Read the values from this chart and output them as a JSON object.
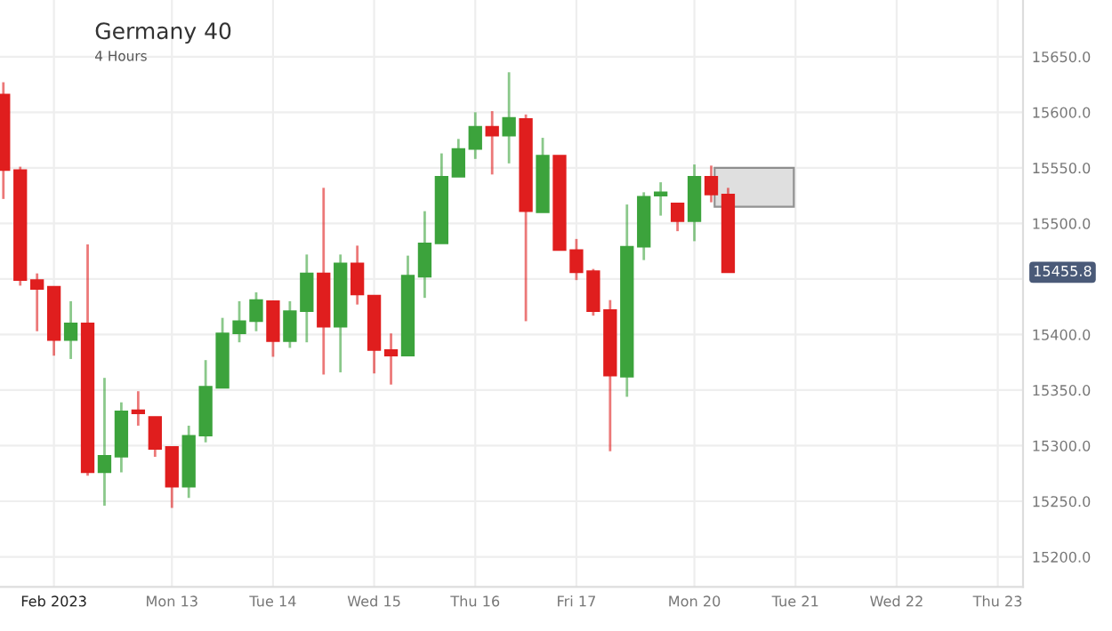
{
  "chart_data": {
    "type": "candlestick",
    "title": "Germany 40",
    "subtitle": "4 Hours",
    "categories": [
      null,
      null,
      null,
      "Feb 2023",
      null,
      null,
      null,
      null,
      null,
      null,
      "Mon 13",
      null,
      null,
      null,
      null,
      null,
      "Tue 14",
      null,
      null,
      null,
      null,
      null,
      "Wed 15",
      null,
      null,
      null,
      null,
      null,
      "Thu 16",
      null,
      null,
      null,
      null,
      null,
      "Fri 17",
      null,
      null,
      null,
      null,
      null,
      null,
      "Mon 20",
      null,
      null,
      null,
      null,
      null,
      "Tue 21",
      null,
      null,
      null,
      null,
      null,
      "Wed 22",
      null,
      null,
      null,
      null,
      null,
      "Thu 23",
      null
    ],
    "ohlc": [
      [
        15616,
        15627,
        15522,
        15548
      ],
      [
        15548,
        15551,
        15444,
        15449
      ],
      [
        15449,
        15455,
        15403,
        15441
      ],
      [
        15443,
        15443,
        15381,
        15395
      ],
      [
        15395,
        15430,
        15378,
        15410
      ],
      [
        15410,
        15481,
        15273,
        15276
      ],
      [
        15276,
        15361,
        15246,
        15291
      ],
      [
        15290,
        15339,
        15276,
        15331
      ],
      [
        15332,
        15349,
        15318,
        15329
      ],
      [
        15326,
        15326,
        15290,
        15297
      ],
      [
        15299,
        15299,
        15244,
        15263
      ],
      [
        15263,
        15318,
        15253,
        15309
      ],
      [
        15309,
        15377,
        15303,
        15353
      ],
      [
        15352,
        15415,
        15352,
        15401
      ],
      [
        15401,
        15430,
        15393,
        15412
      ],
      [
        15412,
        15438,
        15403,
        15431
      ],
      [
        15430,
        15430,
        15380,
        15394
      ],
      [
        15394,
        15430,
        15388,
        15421
      ],
      [
        15421,
        15472,
        15393,
        15455
      ],
      [
        15455,
        15532,
        15364,
        15407
      ],
      [
        15407,
        15472,
        15366,
        15464
      ],
      [
        15464,
        15480,
        15427,
        15436
      ],
      [
        15435,
        15435,
        15365,
        15386
      ],
      [
        15386,
        15401,
        15355,
        15381
      ],
      [
        15381,
        15471,
        15381,
        15453
      ],
      [
        15452,
        15511,
        15433,
        15482
      ],
      [
        15482,
        15563,
        15482,
        15542
      ],
      [
        15542,
        15576,
        15542,
        15567
      ],
      [
        15567,
        15600,
        15558,
        15587
      ],
      [
        15587,
        15601,
        15544,
        15579
      ],
      [
        15579,
        15636,
        15554,
        15595
      ],
      [
        15594,
        15598,
        15412,
        15511
      ],
      [
        15510,
        15577,
        15510,
        15561
      ],
      [
        15561,
        15561,
        15476,
        15476
      ],
      [
        15476,
        15486,
        15449,
        15456
      ],
      [
        15457,
        15459,
        15417,
        15421
      ],
      [
        15422,
        15431,
        15295,
        15363
      ],
      [
        15362,
        15517,
        15344,
        15479
      ],
      [
        15479,
        15528,
        15467,
        15524
      ],
      [
        15525,
        15537,
        15507,
        15528
      ],
      [
        15518,
        15518,
        15493,
        15502
      ],
      [
        15502,
        15553,
        15484,
        15542
      ],
      [
        15542,
        15552,
        15519,
        15526
      ],
      [
        15526,
        15532,
        15456,
        15456
      ],
      null,
      null,
      null,
      null,
      null,
      null,
      null,
      null,
      null,
      null,
      null,
      null,
      null,
      null,
      null,
      null,
      null
    ],
    "colors": [
      "#e01e1e",
      "#e01e1e",
      "#e01e1e",
      "#e01e1e",
      "#3ca33c",
      "#e01e1e",
      "#3ca33c",
      "#3ca33c",
      "#e01e1e",
      "#e01e1e",
      "#e01e1e",
      "#3ca33c",
      "#3ca33c",
      "#3ca33c",
      "#3ca33c",
      "#3ca33c",
      "#e01e1e",
      "#3ca33c",
      "#3ca33c",
      "#e01e1e",
      "#3ca33c",
      "#e01e1e",
      "#e01e1e",
      "#e01e1e",
      "#3ca33c",
      "#3ca33c",
      "#3ca33c",
      "#3ca33c",
      "#3ca33c",
      "#e01e1e",
      "#3ca33c",
      "#e01e1e",
      "#3ca33c",
      "#e01e1e",
      "#e01e1e",
      "#e01e1e",
      "#e01e1e",
      "#3ca33c",
      "#3ca33c",
      "#3ca33c",
      "#e01e1e",
      "#3ca33c",
      "#e01e1e",
      "#e01e1e",
      null,
      null,
      null,
      null,
      null,
      null,
      null,
      null,
      null,
      null,
      null,
      null,
      null,
      null,
      null,
      null,
      null
    ],
    "ylim": [
      15173,
      15701
    ],
    "yticks": [
      {
        "value": 15200,
        "label": "15200.0"
      },
      {
        "value": 15250,
        "label": "15250.0"
      },
      {
        "value": 15300,
        "label": "15300.0"
      },
      {
        "value": 15350,
        "label": "15350.0"
      },
      {
        "value": 15400,
        "label": "15400.0"
      },
      {
        "value": 15450,
        "label": null
      },
      {
        "value": 15500,
        "label": "15500.0"
      },
      {
        "value": 15550,
        "label": "15550.0"
      },
      {
        "value": 15600,
        "label": "15600.0"
      },
      {
        "value": 15650,
        "label": "15650.0"
      }
    ],
    "annotations": [
      "15455.8"
    ],
    "grid": true
  }
}
